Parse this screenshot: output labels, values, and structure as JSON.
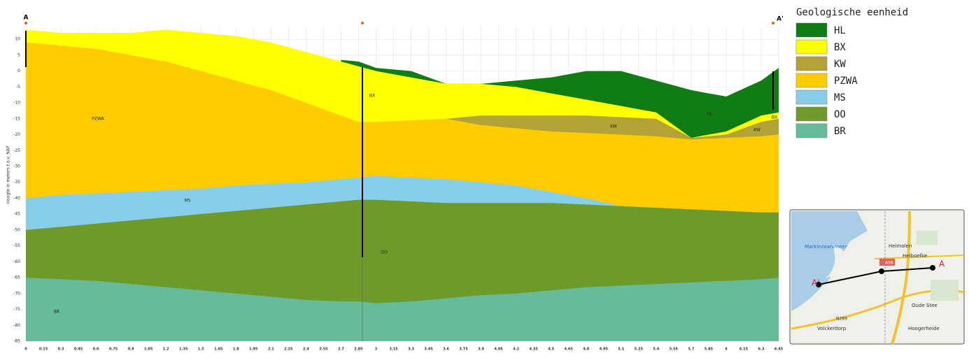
{
  "chart_data": {
    "type": "section",
    "ylabel": "Hoogte in meters t.o.v. NAP",
    "x": [
      0,
      0.3,
      0.6,
      0.9,
      1.2,
      1.5,
      1.8,
      2.1,
      2.4,
      2.7,
      2.85,
      3.0,
      3.3,
      3.6,
      3.9,
      4.2,
      4.5,
      4.8,
      5.1,
      5.4,
      5.7,
      6.0,
      6.3,
      6.45
    ],
    "series": [
      {
        "name": "HL",
        "color": "#0f7d14",
        "values": [
          null,
          null,
          null,
          null,
          null,
          null,
          null,
          null,
          null,
          3.5,
          3,
          1,
          0,
          -4,
          -4,
          -3,
          -2,
          0,
          0,
          -3,
          -6,
          -8,
          -3,
          1
        ]
      },
      {
        "name": "BX",
        "color": "#ffff00",
        "values": [
          13,
          12,
          12,
          12,
          13,
          12,
          11,
          9,
          6,
          3,
          1.5,
          0,
          -2,
          -4,
          -4,
          -5,
          -7,
          -9,
          -11,
          -13,
          -21,
          -19,
          -14,
          -13
        ]
      },
      {
        "name": "KW",
        "color": "#b3a337",
        "values": [
          null,
          null,
          null,
          null,
          null,
          null,
          null,
          null,
          null,
          null,
          null,
          null,
          null,
          -15,
          -14,
          -14,
          -14,
          -14,
          -14.5,
          -15,
          -21,
          -20,
          -16,
          -15
        ]
      },
      {
        "name": "PZWA",
        "color": "#ffcc00",
        "values": [
          9,
          8,
          7,
          5,
          3,
          0,
          -3,
          -6,
          -10,
          -14,
          -16,
          -16,
          -15.5,
          -15,
          -17,
          -18,
          -19,
          -19.5,
          -20,
          -20.5,
          -21.5,
          -21,
          -20.5,
          -20
        ]
      },
      {
        "name": "MS",
        "color": "#87ceeb",
        "values": [
          -40,
          -39,
          -38.5,
          -38,
          -37.5,
          -37,
          -36,
          -35.5,
          -35,
          -34,
          -33.5,
          -33,
          -33.5,
          -34,
          -35,
          -36,
          -38,
          -40,
          -42.5,
          -43,
          -43.5,
          -44,
          -44.5,
          -44.5
        ]
      },
      {
        "name": "OO",
        "color": "#6e9a2a",
        "values": [
          -50,
          -49,
          -48,
          -47,
          -46,
          -45,
          -44,
          -43,
          -42,
          -41,
          -40.5,
          -40.5,
          -41,
          -41.5,
          -41.5,
          -41.5,
          -41.5,
          -42,
          -42.5,
          -43,
          -43.5,
          -44,
          -44.5,
          -44.5
        ]
      },
      {
        "name": "BR",
        "color": "#66bb99",
        "values": [
          -65,
          -65.5,
          -66,
          -67,
          -68,
          -69,
          -70,
          -71,
          -72,
          -72.5,
          -72.5,
          -73,
          -72.5,
          -71.5,
          -70.5,
          -70,
          -69,
          -68,
          -67.5,
          -67,
          -66.5,
          -66,
          -65.5,
          -65
        ]
      }
    ],
    "layer_labels": [
      "PZWA",
      "BX",
      "KW",
      "HL",
      "BX",
      "KW",
      "MS",
      "OO",
      "BR"
    ],
    "section_ends": [
      "A",
      "A'"
    ],
    "legend_title": "Geologische eenheid",
    "xlim": [
      0,
      6.45
    ],
    "ylim": [
      -85,
      14
    ],
    "xticks": [
      0,
      0.15,
      0.3,
      0.45,
      0.6,
      0.75,
      0.9,
      1.05,
      1.2,
      1.35,
      1.5,
      1.65,
      1.8,
      1.95,
      2.1,
      2.25,
      2.4,
      2.55,
      2.7,
      2.85,
      3,
      3.15,
      3.3,
      3.45,
      3.6,
      3.75,
      3.9,
      4.05,
      4.2,
      4.35,
      4.5,
      4.65,
      4.8,
      4.95,
      5.1,
      5.25,
      5.4,
      5.55,
      5.7,
      5.85,
      6,
      6.15,
      6.3,
      6.45
    ],
    "yticks": [
      10,
      5,
      0,
      -5,
      -10,
      -15,
      -20,
      -25,
      -30,
      -35,
      -40,
      -45,
      -50,
      -55,
      -60,
      -65,
      -70,
      -75,
      -80,
      -85
    ],
    "grid": true
  },
  "map": {
    "labels": [
      "Markiezaatsmeer",
      "Heimolen",
      "Heiboefke",
      "A58",
      "A",
      "A'",
      "Oude Stee",
      "N289",
      "Volckerdorp",
      "Hoogerheide"
    ]
  }
}
